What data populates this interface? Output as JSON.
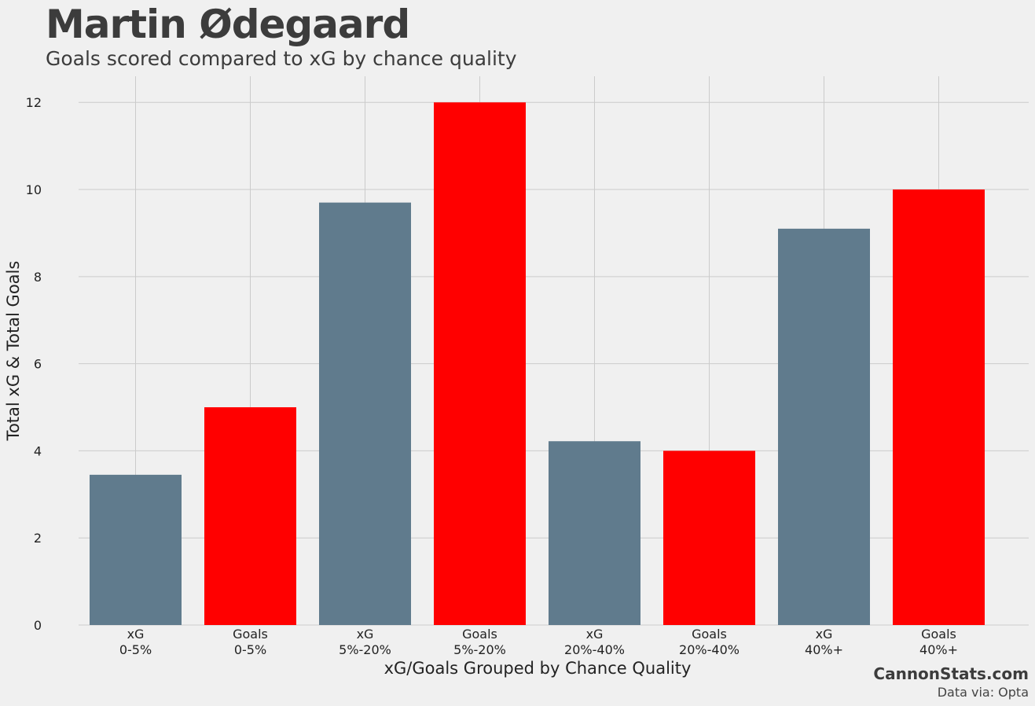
{
  "chart_data": {
    "type": "bar",
    "title": "Martin Ødegaard",
    "subtitle": "Goals scored compared to xG by chance quality",
    "xlabel": "xG/Goals Grouped by Chance Quality",
    "ylabel": "Total xG & Total Goals",
    "ylim": [
      0,
      12.6
    ],
    "yticks": [
      0,
      2,
      4,
      6,
      8,
      10,
      12
    ],
    "grid": true,
    "categories": [
      [
        "xG",
        "0-5%"
      ],
      [
        "Goals",
        "0-5%"
      ],
      [
        "xG",
        "5%-20%"
      ],
      [
        "Goals",
        "5%-20%"
      ],
      [
        "xG",
        "20%-40%"
      ],
      [
        "Goals",
        "20%-40%"
      ],
      [
        "xG",
        "40%+"
      ],
      [
        "Goals",
        "40%+"
      ]
    ],
    "values": [
      3.45,
      5,
      9.7,
      12,
      4.22,
      4,
      9.1,
      10
    ],
    "bar_types": [
      "xG",
      "Goals",
      "xG",
      "Goals",
      "xG",
      "Goals",
      "xG",
      "Goals"
    ],
    "colors": {
      "xG": "#607b8d",
      "Goals": "#ff0000",
      "grid": "#cbcbcb",
      "background": "#f0f0f0"
    }
  },
  "credits": {
    "site": "CannonStats.com",
    "source": "Data via: Opta"
  }
}
